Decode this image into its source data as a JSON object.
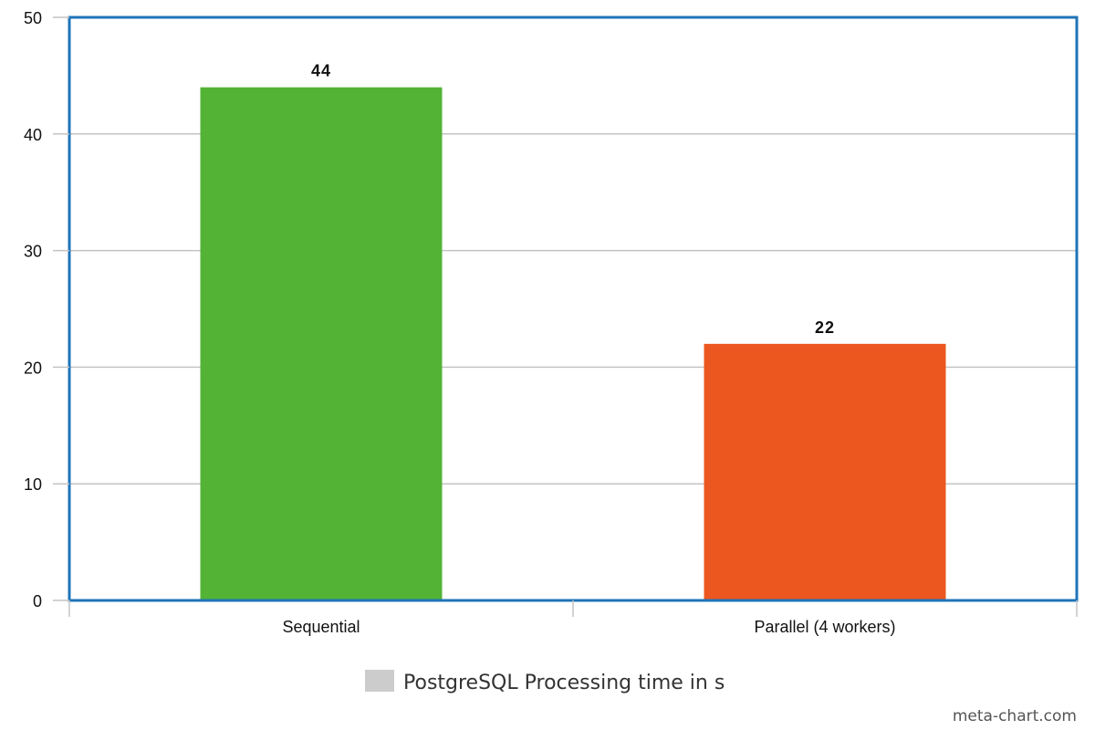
{
  "chart_data": {
    "type": "bar",
    "categories": [
      "Sequential",
      "Parallel (4 workers)"
    ],
    "series": [
      {
        "name": "PostgreSQL Processing time in s",
        "values": [
          44,
          22
        ],
        "bar_colors": [
          "#52b335",
          "#eb571e"
        ],
        "data_labels": [
          "44",
          "22"
        ]
      }
    ],
    "title": "",
    "xlabel": "",
    "ylabel": "",
    "ylim": [
      0,
      50
    ],
    "yticks": [
      0,
      10,
      20,
      30,
      40,
      50
    ],
    "grid": true,
    "legend_placement": "bottom-center"
  },
  "colors": {
    "frame": "#1f74b9",
    "grid": "#c4c4c4",
    "legend_swatch": "#cccccc"
  },
  "watermark": "meta-chart.com"
}
